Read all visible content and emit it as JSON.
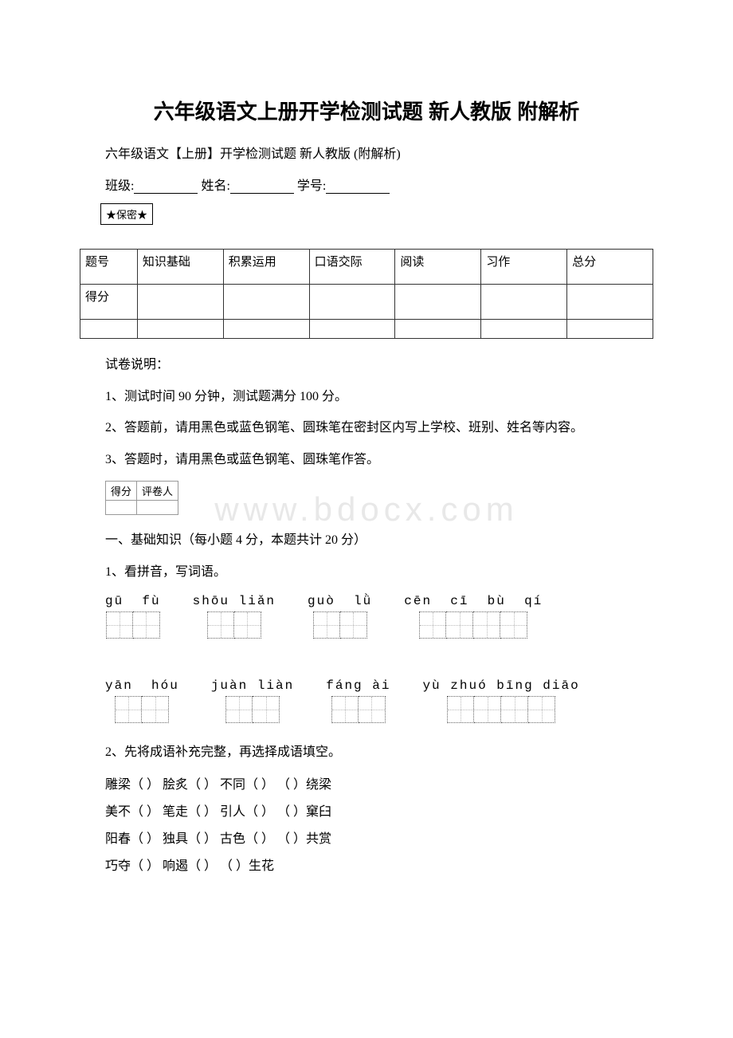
{
  "title": "六年级语文上册开学检测试题 新人教版 附解析",
  "subtitle": "六年级语文【上册】开学检测试题 新人教版 (附解析)",
  "info": {
    "class_label": "班级:",
    "name_label": "姓名:",
    "id_label": "学号:"
  },
  "secret": "★保密★",
  "score_table": {
    "row1": [
      "题号",
      "知识基础",
      "积累运用",
      "口语交际",
      "阅读",
      "习作",
      "总分"
    ],
    "row2_label": "得分"
  },
  "instructions": {
    "header": "试卷说明：",
    "line1": "1、测试时间 90 分钟，测试题满分 100 分。",
    "line2": "2、答题前，请用黑色或蓝色钢笔、圆珠笔在密封区内写上学校、班别、姓名等内容。",
    "line3": "3、答题时，请用黑色或蓝色钢笔、圆珠笔作答。"
  },
  "mini_table": {
    "col1": "得分",
    "col2": "评卷人"
  },
  "section1": {
    "title": "一、基础知识（每小题 4 分，本题共计 20 分）",
    "q1": "1、看拼音，写词语。",
    "pinyin_row1": [
      {
        "label": "gū  fù",
        "boxes": 2
      },
      {
        "label": "shōu liǎn",
        "boxes": 2
      },
      {
        "label": "guò  lǜ",
        "boxes": 2
      },
      {
        "label": "cēn  cī  bù  qí",
        "boxes": 4
      }
    ],
    "pinyin_row2": [
      {
        "label": "yān  hóu",
        "boxes": 2
      },
      {
        "label": "juàn liàn",
        "boxes": 2
      },
      {
        "label": "fáng ài",
        "boxes": 2
      },
      {
        "label": "yù zhuó bīng diāo",
        "boxes": 4
      }
    ],
    "q2": "2、先将成语补充完整，再选择成语填空。",
    "idioms": [
      "雕梁（ ） 脍炙（ ） 不同（ ） （ ）绕梁",
      "美不（ ） 笔走（ ） 引人（ ） （ ）窠臼",
      "阳春（ ） 独具（ ） 古色（ ） （ ）共赏",
      "巧夺（ ） 响遏（ ） （ ）生花"
    ]
  },
  "watermark": "www.bdocx.com",
  "colors": {
    "text": "#000000",
    "background": "#ffffff",
    "border": "#333333",
    "dotted": "#666666",
    "watermark": "#e8e8e8"
  }
}
